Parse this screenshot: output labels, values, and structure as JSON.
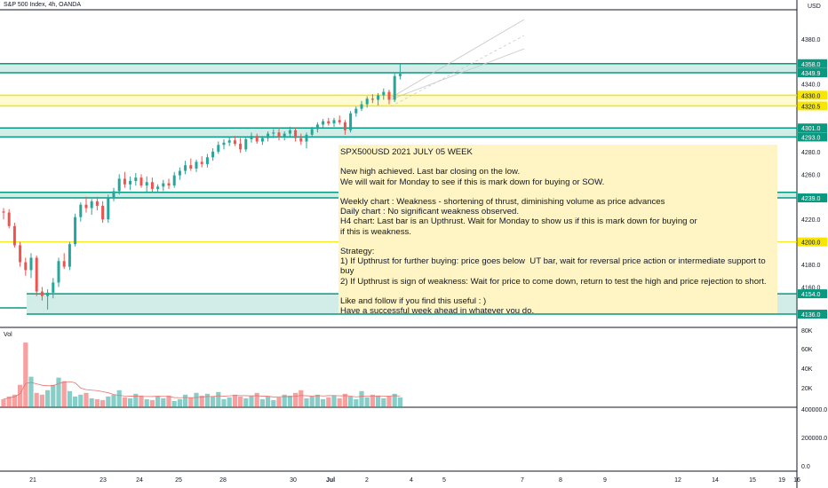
{
  "header": {
    "symbol": "S&P 500 Index, 4h, OANDA"
  },
  "currency": "USD",
  "volume_label": "Vol",
  "note": {
    "lines": [
      "SPX500USD 2021 JULY 05 WEEK",
      "",
      "New high achieved. Last bar closing on the low.",
      "We will wait for Monday to see if this is mark down for buying or SOW.",
      "",
      "Weekly chart : Weakness - shortening of thrust, diminishing volume as price advances",
      "Daily chart : No significant weakness observed.",
      "H4 chart: Last bar is an Upthrust. Wait for Monday to show us if this is mark down for buying or",
      "if this is weakness.",
      "",
      "Strategy:",
      "1) If Upthrust for further buying: price goes below  UT bar, wait for reversal price action or intermediate support to buy",
      "2) If Upthrust is sign of weakness: Wait for price to come down, return to test the high and price rejection to short.",
      "",
      "Like and follow if you find this useful : )",
      "Have a successful week ahead in whatever you do."
    ]
  },
  "colors": {
    "up": "#26a69a",
    "down": "#ef5350",
    "zone_green": "#089981",
    "zone_yellow": "#f7e600",
    "line_red": "#e57373"
  },
  "chart_data": {
    "type": "candlestick",
    "price_axis": {
      "ticks": [
        4380.0,
        4340.0,
        4320.0,
        4300.0,
        4280.0,
        4260.0,
        4240.0,
        4220.0,
        4180.0,
        4160.0
      ],
      "range": [
        4125,
        4405
      ]
    },
    "x_ticks": [
      "21",
      "23",
      "24",
      "25",
      "28",
      "30",
      "Jul",
      "2",
      "4",
      "5",
      "7",
      "8",
      "9",
      "12",
      "14",
      "15",
      "16",
      "19"
    ],
    "price_labels": [
      {
        "value": 4358.0,
        "text": "4358.0",
        "color": "#089981"
      },
      {
        "value": 4350.0,
        "text": "4350.0",
        "color": "#089981"
      },
      {
        "value": 4349.9,
        "text": "4349.9",
        "color": "#089981"
      },
      {
        "value": 4330.0,
        "text": "4330.0",
        "color": "#f7e600"
      },
      {
        "value": 4320.5,
        "text": "4320.5",
        "color": "#f7e600"
      },
      {
        "value": 4301.0,
        "text": "4301.0",
        "color": "#089981"
      },
      {
        "value": 4293.0,
        "text": "4293.0",
        "color": "#089981"
      },
      {
        "value": 4239.0,
        "text": "4239.0",
        "color": "#089981"
      },
      {
        "value": 4200.0,
        "text": "4200.0",
        "color": "#f7e600"
      },
      {
        "value": 4154.0,
        "text": "4154.0",
        "color": "#089981"
      },
      {
        "value": 4136.0,
        "text": "4136.0",
        "color": "#089981"
      }
    ],
    "zones": [
      {
        "from": 4349.9,
        "to": 4358.0,
        "color": "green"
      },
      {
        "from": 4320.5,
        "to": 4330.0,
        "color": "yellow"
      },
      {
        "from": 4293.0,
        "to": 4301.0,
        "color": "green"
      },
      {
        "from": 4239.0,
        "to": 4244.0,
        "color": "green"
      },
      {
        "from": 4136.0,
        "to": 4154.0,
        "color": "green"
      }
    ],
    "hlines": [
      {
        "value": 4200.0,
        "color": "yellow"
      }
    ],
    "candles": [
      [
        4227,
        4230,
        4220,
        4226
      ],
      [
        4226,
        4229,
        4212,
        4214
      ],
      [
        4214,
        4217,
        4195,
        4197
      ],
      [
        4197,
        4200,
        4178,
        4182
      ],
      [
        4182,
        4186,
        4170,
        4175
      ],
      [
        4175,
        4190,
        4168,
        4186
      ],
      [
        4186,
        4188,
        4152,
        4156
      ],
      [
        4156,
        4160,
        4148,
        4152
      ],
      [
        4152,
        4158,
        4140,
        4155
      ],
      [
        4155,
        4168,
        4150,
        4164
      ],
      [
        4164,
        4186,
        4160,
        4183
      ],
      [
        4183,
        4190,
        4176,
        4178
      ],
      [
        4178,
        4200,
        4175,
        4198
      ],
      [
        4198,
        4225,
        4196,
        4222
      ],
      [
        4222,
        4235,
        4218,
        4233
      ],
      [
        4233,
        4240,
        4226,
        4230
      ],
      [
        4230,
        4238,
        4224,
        4236
      ],
      [
        4236,
        4240,
        4228,
        4232
      ],
      [
        4232,
        4236,
        4217,
        4220
      ],
      [
        4220,
        4242,
        4217,
        4239
      ],
      [
        4239,
        4248,
        4236,
        4245
      ],
      [
        4245,
        4260,
        4242,
        4256
      ],
      [
        4256,
        4262,
        4248,
        4251
      ],
      [
        4251,
        4258,
        4246,
        4254
      ],
      [
        4254,
        4261,
        4250,
        4257
      ],
      [
        4257,
        4260,
        4248,
        4250
      ],
      [
        4250,
        4258,
        4244,
        4253
      ],
      [
        4253,
        4257,
        4244,
        4247
      ],
      [
        4247,
        4251,
        4244,
        4249
      ],
      [
        4249,
        4255,
        4245,
        4252
      ],
      [
        4252,
        4256,
        4247,
        4250
      ],
      [
        4250,
        4262,
        4248,
        4259
      ],
      [
        4259,
        4266,
        4255,
        4263
      ],
      [
        4263,
        4272,
        4260,
        4268
      ],
      [
        4268,
        4274,
        4263,
        4265
      ],
      [
        4265,
        4273,
        4262,
        4271
      ],
      [
        4271,
        4276,
        4266,
        4269
      ],
      [
        4269,
        4278,
        4266,
        4275
      ],
      [
        4275,
        4283,
        4272,
        4280
      ],
      [
        4280,
        4289,
        4278,
        4286
      ],
      [
        4286,
        4291,
        4282,
        4288
      ],
      [
        4288,
        4293,
        4285,
        4290
      ],
      [
        4290,
        4294,
        4285,
        4287
      ],
      [
        4287,
        4292,
        4279,
        4282
      ],
      [
        4282,
        4293,
        4280,
        4291
      ],
      [
        4291,
        4297,
        4288,
        4294
      ],
      [
        4294,
        4296,
        4287,
        4289
      ],
      [
        4289,
        4294,
        4286,
        4292
      ],
      [
        4292,
        4298,
        4289,
        4296
      ],
      [
        4296,
        4300,
        4292,
        4297
      ],
      [
        4297,
        4301,
        4290,
        4293
      ],
      [
        4293,
        4298,
        4290,
        4296
      ],
      [
        4296,
        4302,
        4293,
        4299
      ],
      [
        4299,
        4301,
        4289,
        4292
      ],
      [
        4292,
        4296,
        4286,
        4289
      ],
      [
        4289,
        4297,
        4283,
        4295
      ],
      [
        4295,
        4302,
        4293,
        4300
      ],
      [
        4300,
        4306,
        4297,
        4304
      ],
      [
        4304,
        4309,
        4301,
        4307
      ],
      [
        4307,
        4310,
        4303,
        4305
      ],
      [
        4305,
        4310,
        4302,
        4308
      ],
      [
        4308,
        4312,
        4304,
        4306
      ],
      [
        4306,
        4308,
        4295,
        4299
      ],
      [
        4299,
        4316,
        4297,
        4314
      ],
      [
        4314,
        4320,
        4311,
        4318
      ],
      [
        4318,
        4325,
        4316,
        4322
      ],
      [
        4322,
        4329,
        4319,
        4327
      ],
      [
        4327,
        4331,
        4323,
        4326
      ],
      [
        4326,
        4332,
        4321,
        4330
      ],
      [
        4330,
        4336,
        4326,
        4333
      ],
      [
        4333,
        4335,
        4322,
        4326
      ],
      [
        4326,
        4350,
        4324,
        4347
      ],
      [
        4347,
        4358,
        4344,
        4349
      ]
    ],
    "volume_axis": {
      "ticks": [
        "80K",
        "60K",
        "40K",
        "20K",
        "400000.0",
        "200000.0",
        "0.0"
      ]
    },
    "volumes": [
      9,
      12,
      14,
      25,
      72,
      34,
      16,
      14,
      19,
      25,
      33,
      29,
      18,
      12,
      14,
      16,
      10,
      9,
      8,
      12,
      14,
      19,
      11,
      10,
      15,
      13,
      9,
      8,
      12,
      10,
      13,
      7,
      9,
      14,
      11,
      16,
      13,
      15,
      12,
      17,
      9,
      11,
      14,
      12,
      10,
      13,
      16,
      9,
      12,
      8,
      11,
      14,
      13,
      16,
      19,
      10,
      12,
      14,
      9,
      11,
      13,
      10,
      15,
      12,
      9,
      18,
      11,
      14,
      13,
      10,
      12,
      15,
      11
    ]
  }
}
